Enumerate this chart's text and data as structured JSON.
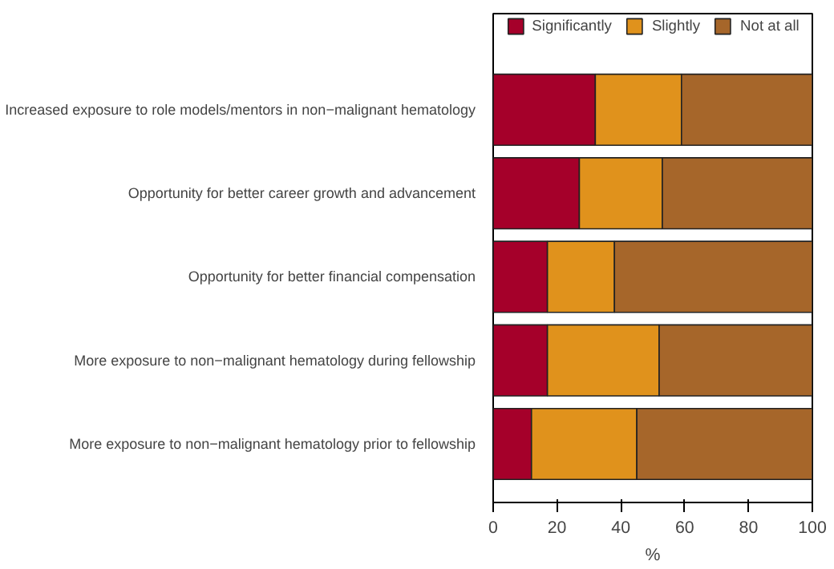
{
  "chart_data": {
    "type": "bar",
    "orientation": "horizontal",
    "stacked": true,
    "categories": [
      "Increased exposure to role models/mentors in non−malignant hematology",
      "Opportunity for better career growth and advancement",
      "Opportunity for better financial compensation",
      "More exposure to non−malignant hematology during fellowship",
      "More exposure to non−malignant hematology prior to fellowship"
    ],
    "series": [
      {
        "name": "Significantly",
        "color": "#a5002a",
        "values": [
          32,
          27,
          17,
          17,
          12
        ]
      },
      {
        "name": "Slightly",
        "color": "#e0921c",
        "values": [
          27,
          26,
          21,
          35,
          33
        ]
      },
      {
        "name": "Not at all",
        "color": "#a6662a",
        "values": [
          41,
          47,
          62,
          48,
          55
        ]
      }
    ],
    "xlim": [
      0,
      100
    ],
    "xticks": [
      0,
      20,
      40,
      60,
      80,
      100
    ],
    "xlabel": "%",
    "legend": "top",
    "grid": false
  }
}
